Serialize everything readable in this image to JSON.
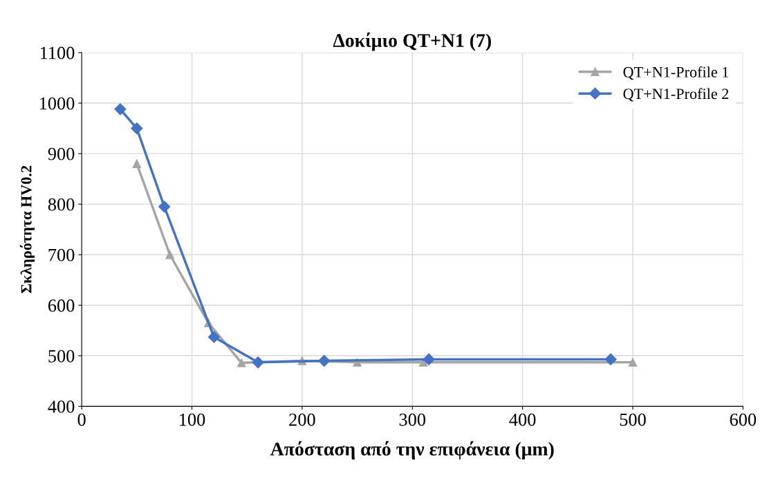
{
  "chart_data": {
    "type": "line",
    "title": "Δοκίμιο QT+N1 (7)",
    "xlabel": "Απόσταση από την επιφάνεια (μm)",
    "ylabel": "Σκληρότητα HV0.2",
    "xlim": [
      0,
      600
    ],
    "xticks": [
      0,
      100,
      200,
      300,
      400,
      500,
      600
    ],
    "ylim": [
      400,
      1100
    ],
    "yticks": [
      400,
      500,
      600,
      700,
      800,
      900,
      1000,
      1100
    ],
    "grid": true,
    "legend": "top right",
    "series": [
      {
        "name": "QT+N1-Profile 1",
        "color": "#a5a5a5",
        "marker": "triangle",
        "x": [
          50,
          80,
          115,
          145,
          200,
          250,
          310,
          500
        ],
        "values": [
          880,
          700,
          565,
          486,
          490,
          487,
          487,
          487
        ]
      },
      {
        "name": "QT+N1-Profile 2",
        "color": "#4472c4",
        "marker": "diamond",
        "x": [
          35,
          50,
          75,
          120,
          160,
          220,
          315,
          480
        ],
        "values": [
          988,
          950,
          795,
          537,
          487,
          490,
          493,
          493
        ]
      }
    ]
  }
}
